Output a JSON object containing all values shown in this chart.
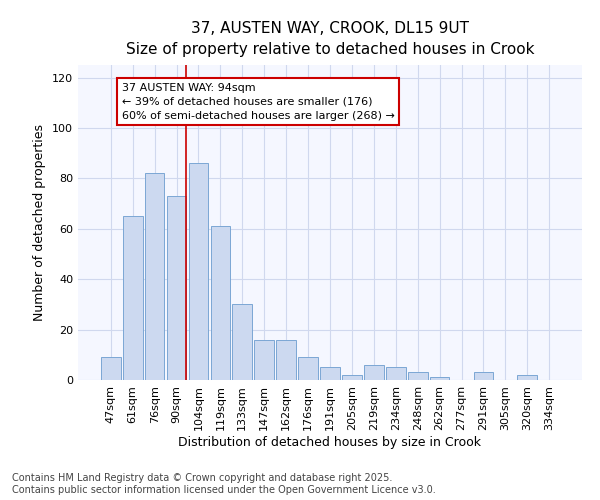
{
  "title_line1": "37, AUSTEN WAY, CROOK, DL15 9UT",
  "title_line2": "Size of property relative to detached houses in Crook",
  "xlabel": "Distribution of detached houses by size in Crook",
  "ylabel": "Number of detached properties",
  "categories": [
    "47sqm",
    "61sqm",
    "76sqm",
    "90sqm",
    "104sqm",
    "119sqm",
    "133sqm",
    "147sqm",
    "162sqm",
    "176sqm",
    "191sqm",
    "205sqm",
    "219sqm",
    "234sqm",
    "248sqm",
    "262sqm",
    "277sqm",
    "291sqm",
    "305sqm",
    "320sqm",
    "334sqm"
  ],
  "values": [
    9,
    65,
    82,
    73,
    86,
    61,
    30,
    16,
    16,
    9,
    5,
    2,
    6,
    5,
    3,
    1,
    0,
    3,
    0,
    2,
    0
  ],
  "bar_color": "#ccd9f0",
  "bar_edge_color": "#7ba7d4",
  "red_line_color": "#cc0000",
  "annotation_line1": "37 AUSTEN WAY: 94sqm",
  "annotation_line2": "← 39% of detached houses are smaller (176)",
  "annotation_line3": "60% of semi-detached houses are larger (268) →",
  "annotation_box_color": "#ffffff",
  "annotation_box_edge": "#cc0000",
  "grid_color": "#d0d8ee",
  "background_color": "#ffffff",
  "plot_bg_color": "#f5f7ff",
  "ylim": [
    0,
    125
  ],
  "yticks": [
    0,
    20,
    40,
    60,
    80,
    100,
    120
  ],
  "footer_line1": "Contains HM Land Registry data © Crown copyright and database right 2025.",
  "footer_line2": "Contains public sector information licensed under the Open Government Licence v3.0.",
  "title_fontsize": 11,
  "subtitle_fontsize": 10,
  "axis_label_fontsize": 9,
  "tick_fontsize": 8,
  "annotation_fontsize": 8,
  "footer_fontsize": 7
}
